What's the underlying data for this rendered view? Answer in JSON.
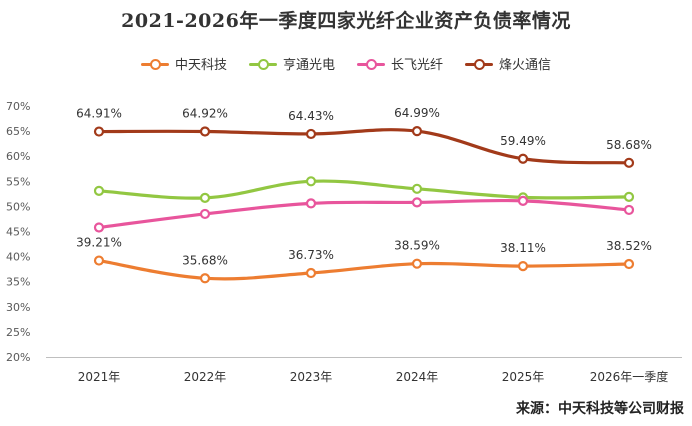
{
  "title": "2021-2026年一季度四家光纤企业资产负债率情况",
  "source": "来源：中天科技等公司财报",
  "chart_data": {
    "type": "line",
    "title": "2021-2026年一季度四家光纤企业资产负债率情况",
    "categories": [
      "2021年",
      "2022年",
      "2023年",
      "2024年",
      "2025年",
      "2026年一季度"
    ],
    "ylim": [
      20,
      70
    ],
    "yticks": [
      "20%",
      "25%",
      "30%",
      "35%",
      "40%",
      "45%",
      "50%",
      "55%",
      "60%",
      "65%",
      "70%"
    ],
    "grid": false,
    "legend_position": "top",
    "series": [
      {
        "name": "中天科技",
        "color": "#ED7D31",
        "values": [
          39.21,
          35.68,
          36.73,
          38.59,
          38.11,
          38.52
        ],
        "labels": [
          "39.21%",
          "35.68%",
          "36.73%",
          "38.59%",
          "38.11%",
          "38.52%"
        ]
      },
      {
        "name": "亨通光电",
        "color": "#92C742",
        "values": [
          53.1,
          51.7,
          55.0,
          53.5,
          51.8,
          51.9
        ]
      },
      {
        "name": "长飞光纤",
        "color": "#E8559C",
        "values": [
          45.8,
          48.5,
          50.6,
          50.8,
          51.1,
          49.3
        ]
      },
      {
        "name": "烽火通信",
        "color": "#A23A1A",
        "values": [
          64.91,
          64.92,
          64.43,
          64.99,
          59.49,
          58.68
        ],
        "labels": [
          "64.91%",
          "64.92%",
          "64.43%",
          "64.99%",
          "59.49%",
          "58.68%"
        ]
      }
    ]
  }
}
